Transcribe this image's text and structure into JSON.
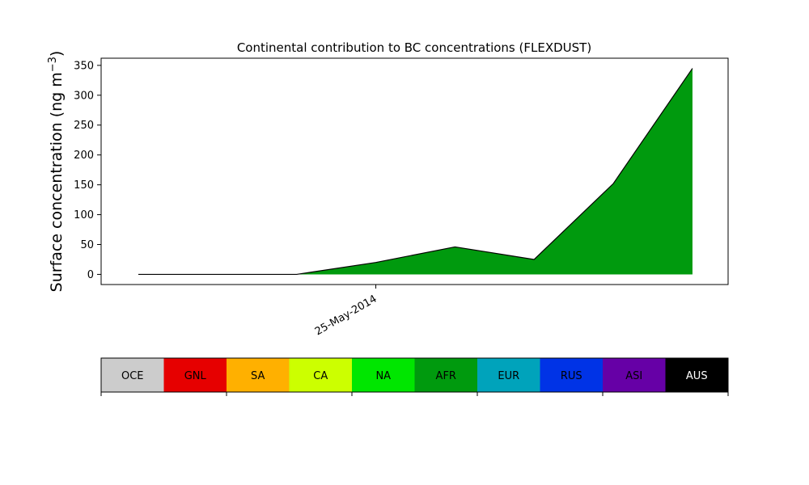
{
  "chart_data": {
    "type": "area",
    "title": "Continental contribution to BC concentrations (FLEXDUST)",
    "ylabel": "Surface concentration (ng m",
    "ylabel_unit_superscript": "−3",
    "ylabel_close": ")",
    "xlabel": "",
    "ylim": [
      -17,
      362
    ],
    "yticks": [
      0,
      50,
      100,
      150,
      200,
      250,
      300,
      350
    ],
    "x": [
      0,
      1,
      2,
      3,
      4,
      5,
      6,
      7,
      8
    ],
    "xlim": [
      -0.47,
      7.45
    ],
    "xticks": [
      {
        "x": 3,
        "label": "25-May-2014"
      }
    ],
    "series": [
      {
        "name": "AFR",
        "color": "#009a0e",
        "values": [
          0,
          0,
          0,
          20,
          46,
          25,
          152,
          345,
          null
        ]
      }
    ],
    "grid": false,
    "legend_placement": "bottom"
  },
  "legend": {
    "items": [
      {
        "label": "OCE",
        "color": "#cccccc",
        "text_color": "#000000"
      },
      {
        "label": "GNL",
        "color": "#e60000",
        "text_color": "#000000"
      },
      {
        "label": "SA",
        "color": "#ffb000",
        "text_color": "#000000"
      },
      {
        "label": "CA",
        "color": "#ccff00",
        "text_color": "#000000"
      },
      {
        "label": "NA",
        "color": "#00e600",
        "text_color": "#000000"
      },
      {
        "label": "AFR",
        "color": "#009a0e",
        "text_color": "#000000"
      },
      {
        "label": "EUR",
        "color": "#00a3bb",
        "text_color": "#000000"
      },
      {
        "label": "RUS",
        "color": "#0033e6",
        "text_color": "#000000"
      },
      {
        "label": "ASI",
        "color": "#6600a6",
        "text_color": "#000000"
      },
      {
        "label": "AUS",
        "color": "#000000",
        "text_color": "#ffffff"
      }
    ]
  }
}
